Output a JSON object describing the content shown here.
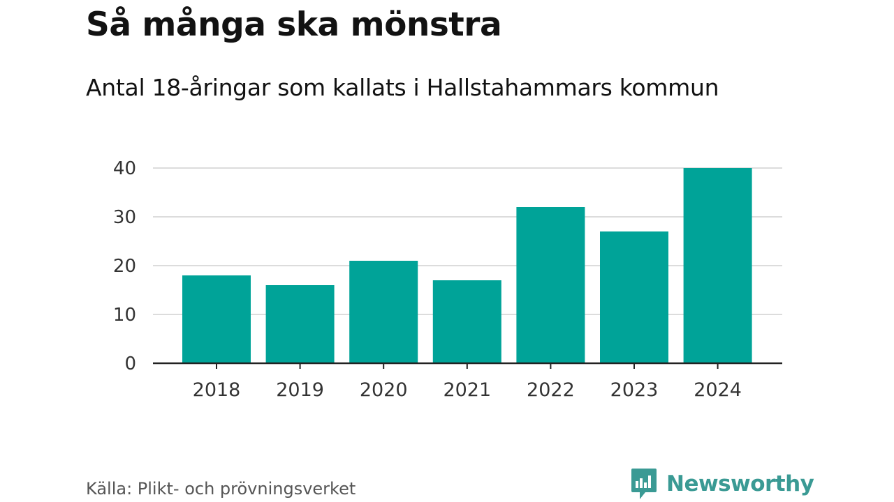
{
  "header": {
    "title": "Så många ska mönstra",
    "subtitle": "Antal 18-åringar som kallats i Hallstahammars kommun"
  },
  "footer": {
    "source": "Källa: Plikt- och prövningsverket",
    "brand": "Newsworthy",
    "brand_icon": "newsworthy-bar-chart-bubble-icon"
  },
  "colors": {
    "bar": "#00A398",
    "grid": "#dcdcdc",
    "axis": "#222222",
    "brand": "#3a9a94"
  },
  "chart_data": {
    "type": "bar",
    "categories": [
      "2018",
      "2019",
      "2020",
      "2021",
      "2022",
      "2023",
      "2024"
    ],
    "values": [
      18,
      16,
      21,
      17,
      32,
      27,
      40
    ],
    "yticks": [
      0,
      10,
      20,
      30,
      40
    ],
    "ylim": [
      0,
      40
    ],
    "grid": true,
    "title": "Så många ska mönstra",
    "subtitle": "Antal 18-åringar som kallats i Hallstahammars kommun",
    "xlabel": "",
    "ylabel": ""
  }
}
